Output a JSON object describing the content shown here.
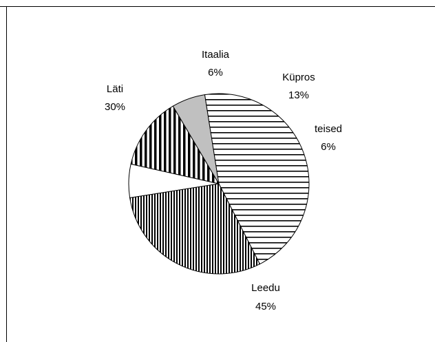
{
  "chart_data": {
    "type": "pie",
    "title": "",
    "legend": "none",
    "slices": [
      {
        "name": "Itaalia",
        "value": 6,
        "label": "6%",
        "fill": "white"
      },
      {
        "name": "Küpros",
        "value": 13,
        "label": "13%",
        "fill": "vertical-stripes-bold"
      },
      {
        "name": "teised",
        "value": 6,
        "label": "6%",
        "fill": "#c0c0c0"
      },
      {
        "name": "Leedu",
        "value": 45,
        "label": "45%",
        "fill": "horizontal-stripes"
      },
      {
        "name": "Läti",
        "value": 30,
        "label": "30%",
        "fill": "vertical-stripes-fine"
      }
    ],
    "colors": {
      "background": "#ffffff",
      "stroke": "#000000",
      "teised": "#c0c0c0"
    }
  }
}
